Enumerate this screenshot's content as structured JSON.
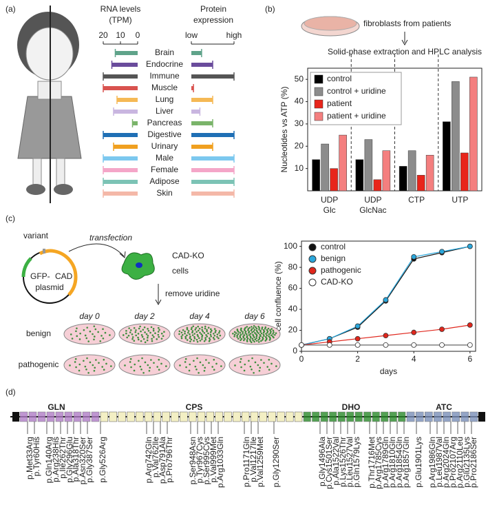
{
  "panel_labels": [
    "(a)",
    "(b)",
    "(c)",
    "(d)"
  ],
  "tissue_panel": {
    "rna_title": [
      "RNA levels",
      "(TPM)"
    ],
    "protein_title": [
      "Protein",
      "expression"
    ],
    "rna_xlim": [
      20,
      0
    ],
    "rna_xticks": [
      20,
      10,
      0
    ],
    "protein_xlim": [
      0,
      1
    ],
    "protein_xticks": [
      {
        "value": 0,
        "label": "low"
      },
      {
        "value": 1,
        "label": "high"
      }
    ],
    "tissues": [
      {
        "name": "Brain",
        "color": "#5fa38a",
        "rna": 13,
        "protein": 0.24
      },
      {
        "name": "Endocrine",
        "color": "#6a4c9c",
        "rna": 15,
        "protein": 0.5
      },
      {
        "name": "Immune",
        "color": "#555555",
        "rna": 20,
        "protein": 1
      },
      {
        "name": "Muscle",
        "color": "#d9534f",
        "rna": 20,
        "protein": 0.05
      },
      {
        "name": "Lung",
        "color": "#f5b955",
        "rna": 12,
        "protein": 0.5
      },
      {
        "name": "Liver",
        "color": "#c9b6e0",
        "rna": 14,
        "protein": 0.2
      },
      {
        "name": "Pancreas",
        "color": "#7ab46a",
        "rna": 3,
        "protein": 0.5
      },
      {
        "name": "Digestive",
        "color": "#1f6fb5",
        "rna": 20,
        "protein": 1
      },
      {
        "name": "Urinary",
        "color": "#f0a020",
        "rna": 14,
        "protein": 0.5
      },
      {
        "name": "Male",
        "color": "#7cc8ef",
        "rna": 20,
        "protein": 1
      },
      {
        "name": "Female",
        "color": "#f4a6c8",
        "rna": 20,
        "protein": 1
      },
      {
        "name": "Adipose",
        "color": "#7cc3b5",
        "rna": 20,
        "protein": 1
      },
      {
        "name": "Skin",
        "color": "#f4b8a8",
        "rna": 20,
        "protein": 1
      }
    ]
  },
  "hplc_header": {
    "source": "fibroblasts from patients",
    "method": "Solid-phase extraction and HPLC analysis"
  },
  "chart_data": [
    {
      "type": "bar",
      "ylabel": "Nucleotides vs ATP (%)",
      "categories": [
        [
          "UDP",
          "Glc"
        ],
        [
          "UDP",
          "GlcNac"
        ],
        [
          "CTP"
        ],
        [
          "UTP"
        ]
      ],
      "series": [
        {
          "name": "control",
          "color": "#000000",
          "values": [
            14,
            14,
            11,
            31
          ]
        },
        {
          "name": "control + uridine",
          "color": "#8c8c8c",
          "values": [
            21,
            23,
            18,
            49
          ]
        },
        {
          "name": "patient",
          "color": "#e8251b",
          "values": [
            10,
            5,
            7,
            17
          ]
        },
        {
          "name": "patient + uridine",
          "color": "#f47f7f",
          "values": [
            25,
            18,
            16,
            51
          ]
        }
      ],
      "ylim": [
        0,
        55
      ],
      "yticks": [
        10,
        20,
        30,
        40,
        50
      ],
      "legend": "top-left"
    },
    {
      "type": "line",
      "xlabel": "days",
      "ylabel": "cell confluence (%)",
      "x": [
        0,
        1,
        2,
        3,
        4,
        5,
        6
      ],
      "series": [
        {
          "name": "control",
          "color": "#111111",
          "values": [
            6,
            12,
            23,
            48,
            88,
            94,
            100
          ]
        },
        {
          "name": "benign",
          "color": "#2aa7dc",
          "values": [
            6,
            12,
            24,
            49,
            90,
            95,
            100
          ]
        },
        {
          "name": "pathogenic",
          "color": "#e0261c",
          "values": [
            6,
            9,
            12,
            15,
            18,
            21,
            25
          ]
        },
        {
          "name": "CAD-KO",
          "color": "#ffffff",
          "values": [
            6,
            6,
            6,
            6,
            6,
            6,
            6
          ]
        }
      ],
      "xlim": [
        0,
        6.2
      ],
      "xticks": [
        0,
        2,
        4,
        6
      ],
      "ylim": [
        0,
        105
      ],
      "yticks": [
        0,
        20,
        40,
        60,
        80,
        100
      ],
      "legend": "top-left"
    }
  ],
  "assay": {
    "variant": "variant",
    "plasmid_prefix": "GFP-",
    "plasmid_gene": "CAD",
    "plasmid": "plasmid",
    "transfection": "transfection",
    "cells": [
      "CAD-KO",
      "cells"
    ],
    "step": "remove uridine",
    "days": [
      "day 0",
      "day 2",
      "day 4",
      "day 6"
    ],
    "rows": [
      {
        "name": "benign",
        "color": "#2aa7dc"
      },
      {
        "name": "pathogenic",
        "color": "#e0261c"
      }
    ]
  },
  "protein_map": {
    "domains": [
      {
        "name": "GLN",
        "color": "#b07cc6"
      },
      {
        "name": "CPS",
        "color": "#c8c08a"
      },
      {
        "name": "DHO",
        "color": "#2a8a2a"
      },
      {
        "name": "ATC",
        "color": "#7a8fb8"
      }
    ],
    "variants": [
      {
        "label": "p.Met33Arg",
        "color": "#e0261c"
      },
      {
        "label": "p.Tyr60His",
        "color": "#9a9a9a"
      },
      {
        "label": "p.Gln140Arg",
        "color": "#2aa7dc"
      },
      {
        "label": "p.Arg238His",
        "color": "#2aa7dc"
      },
      {
        "label": "p.Ile262Thr",
        "color": "#2aa7dc"
      },
      {
        "label": "p.Gly296Glu",
        "color": "#e0261c"
      },
      {
        "label": "p.Ala318Thr",
        "color": "#2aa7dc"
      },
      {
        "label": "p.Asn320Ser",
        "color": "#e0261c"
      },
      {
        "label": "p.Gly387Ser",
        "color": "#2aa7dc"
      },
      {
        "label": "p.Gly526Arg",
        "color": "#e0261c"
      },
      {
        "label": "p.Arg742Gln",
        "color": "#e0261c"
      },
      {
        "label": "p.Val762Ile",
        "color": "#2aa7dc"
      },
      {
        "label": "p.Asp791Ala",
        "color": "#2aa7dc"
      },
      {
        "label": "p.Pro796Thr",
        "color": "#e0261c"
      },
      {
        "label": "p.Ser948Asn",
        "color": "#e0261c"
      },
      {
        "label": "p.Tyr967Cys",
        "color": "#2aa7dc"
      },
      {
        "label": "p.Ser995Cys",
        "color": "#2aa7dc"
      },
      {
        "label": "p.Val999Met",
        "color": "#e0261c"
      },
      {
        "label": "p.Arg1033Gln",
        "color": "#e0261c"
      },
      {
        "label": "p.Pro1171Gln",
        "color": "#e0261c"
      },
      {
        "label": "p.Val1217Ile",
        "color": "#2aa7dc"
      },
      {
        "label": "p.Val1259Met",
        "color": "#e0261c"
      },
      {
        "label": "p.Gly1290Ser",
        "color": "#2aa7dc"
      },
      {
        "label": "p.Gly1496Ala",
        "color": "#2aa7dc"
      },
      {
        "label": "p.Cys1501Ser",
        "color": "#2aa7dc"
      },
      {
        "label": "p.Ala1522Val",
        "color": "#2aa7dc"
      },
      {
        "label": "p.Lys1526Thr",
        "color": "#e0261c"
      },
      {
        "label": "p.Leu1527Val",
        "color": "#2aa7dc"
      },
      {
        "label": "p.Gln1579Lys",
        "color": "#2aa7dc"
      },
      {
        "label": "p.Thr1716Met",
        "color": "#2aa7dc"
      },
      {
        "label": "p.Arg1785Cys",
        "color": "#e0261c"
      },
      {
        "label": "p.Arg1789Gln",
        "color": "#9a9a9a"
      },
      {
        "label": "p.Arg1810Gln",
        "color": "#e0261c"
      },
      {
        "label": "p.Arg1854Gln",
        "color": "#2aa7dc"
      },
      {
        "label": "p.Arg1857Gln",
        "color": "#2aa7dc"
      },
      {
        "label": "p.Glu1901Lys",
        "color": "#9a9a9a"
      },
      {
        "label": "p.Arg1986Gln",
        "color": "#e0261c"
      },
      {
        "label": "p.Leu1987Val",
        "color": "#e0261c"
      },
      {
        "label": "p.Arg2024Gln",
        "color": "#e0261c"
      },
      {
        "label": "p.Pro2107Arg",
        "color": "#2aa7dc"
      },
      {
        "label": "p.Arg2110Leu",
        "color": "#e0261c"
      },
      {
        "label": "p.Glu2135Lys",
        "color": "#2aa7dc"
      },
      {
        "label": "p.Pro2186Ser",
        "color": "#e0261c"
      }
    ]
  }
}
